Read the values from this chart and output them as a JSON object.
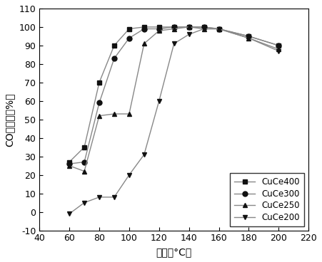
{
  "CuCe400": {
    "x": [
      60,
      70,
      80,
      90,
      100,
      110,
      120,
      130,
      140,
      150,
      160,
      180,
      200
    ],
    "y": [
      27,
      35,
      70,
      90,
      99,
      100,
      100,
      100,
      100,
      100,
      99,
      95,
      90
    ]
  },
  "CuCe300": {
    "x": [
      60,
      70,
      80,
      90,
      100,
      110,
      120,
      130,
      140,
      150,
      160,
      180,
      200
    ],
    "y": [
      26,
      27,
      59,
      83,
      94,
      99,
      99,
      100,
      100,
      100,
      99,
      95,
      90
    ]
  },
  "CuCe250": {
    "x": [
      60,
      70,
      80,
      90,
      100,
      110,
      120,
      130,
      140,
      150,
      160,
      180,
      200
    ],
    "y": [
      25,
      22,
      52,
      53,
      53,
      91,
      98,
      99,
      100,
      99,
      99,
      94,
      88
    ]
  },
  "CuCe200": {
    "x": [
      60,
      70,
      80,
      90,
      100,
      110,
      120,
      130,
      140,
      150,
      160,
      180,
      200
    ],
    "y": [
      -1,
      5,
      8,
      8,
      20,
      31,
      60,
      91,
      96,
      99,
      99,
      94,
      87
    ]
  },
  "line_color": "#888888",
  "marker_color": "#111111",
  "markers": {
    "CuCe400": "s",
    "CuCe300": "o",
    "CuCe250": "^",
    "CuCe200": "v"
  },
  "xlabel": "温度（°C）",
  "ylabel": "CO转化率（%）",
  "xlim": [
    40,
    220
  ],
  "ylim": [
    -10,
    110
  ],
  "xticks": [
    40,
    60,
    80,
    100,
    120,
    140,
    160,
    180,
    200,
    220
  ],
  "yticks": [
    -10,
    0,
    10,
    20,
    30,
    40,
    50,
    60,
    70,
    80,
    90,
    100,
    110
  ],
  "legend_order": [
    "CuCe400",
    "CuCe300",
    "CuCe250",
    "CuCe200"
  ]
}
